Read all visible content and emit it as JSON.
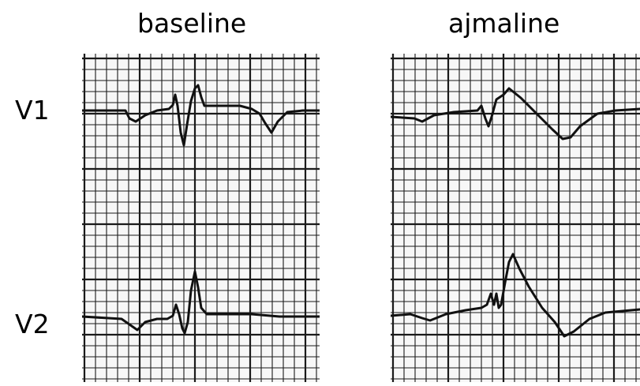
{
  "panels": [
    {
      "title": "baseline"
    },
    {
      "title": "ajmaline"
    }
  ],
  "leads": [
    "V1",
    "V2"
  ],
  "colors": {
    "grid_line": "#1a1a1a",
    "trace": "#111111",
    "paper": "#f7f7f7"
  }
}
